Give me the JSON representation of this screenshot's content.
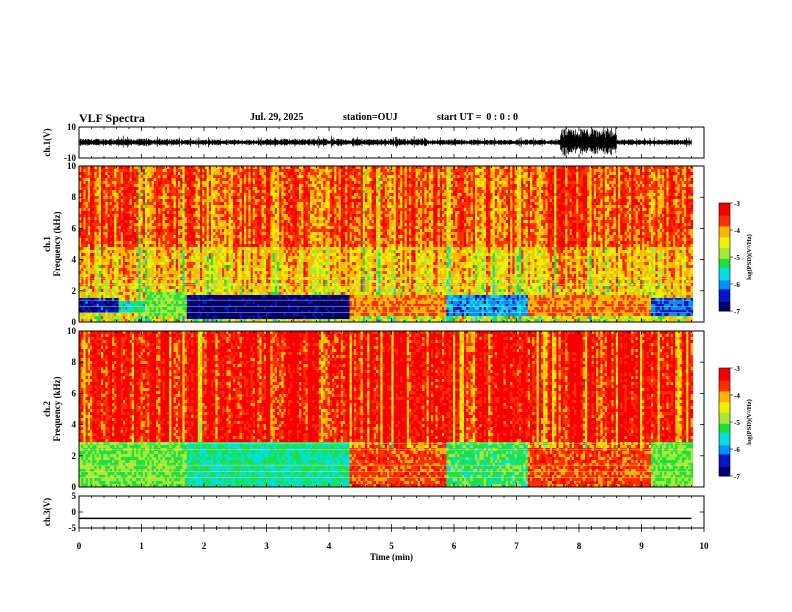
{
  "header": {
    "title": "VLF Spectra",
    "date": "Jul. 29, 2025",
    "station": "station=OUJ",
    "start": "start UT =  0 : 0 : 0"
  },
  "colors": {
    "colormap": [
      "#000070",
      "#0018c8",
      "#0090ff",
      "#00e0e0",
      "#20e040",
      "#a8e838",
      "#f0f000",
      "#ffb400",
      "#ff3000",
      "#f80000"
    ],
    "text": "#000000"
  },
  "colorbars": [
    {
      "ticks": [
        "-3",
        "-4",
        "-5",
        "-6",
        "-7"
      ],
      "label": "log(PSD)(V²/Hz)"
    },
    {
      "ticks": [
        "-3",
        "-4",
        "-5",
        "-6",
        "-7"
      ],
      "label": "log(PSD)(V²/Hz)"
    }
  ],
  "chart_data": [
    {
      "type": "line",
      "ylabel": "ch.1(V)",
      "yticks": [
        "10",
        "-10"
      ],
      "ylim": [
        -10,
        10
      ],
      "xlim": [
        0,
        10
      ],
      "xticks": [
        "0",
        "1",
        "2",
        "3",
        "4",
        "5",
        "6",
        "7",
        "8",
        "9",
        "10"
      ],
      "description_segments": [
        {
          "t": [
            0,
            1.6
          ],
          "amplitude_v": 2.5
        },
        {
          "t": [
            1.6,
            3.0
          ],
          "amplitude_v": 2.0
        },
        {
          "t": [
            3.0,
            5.5
          ],
          "amplitude_v": 2.5
        },
        {
          "t": [
            5.5,
            7.7
          ],
          "amplitude_v": 2.0
        },
        {
          "t": [
            7.7,
            8.6
          ],
          "amplitude_v": 9.0
        },
        {
          "t": [
            8.6,
            9.8
          ],
          "amplitude_v": 2.0
        }
      ]
    },
    {
      "type": "heatmap",
      "ylabel": "ch.1 Frequency (kHz)",
      "yticks": [
        "0",
        "2",
        "4",
        "6",
        "8",
        "10"
      ],
      "ylim": [
        0,
        10
      ],
      "xlim": [
        0,
        10
      ],
      "time_end_min": 9.8,
      "clim": [
        -7,
        -3
      ],
      "segments": [
        {
          "t": [
            0.0,
            0.6
          ],
          "low_band_khz": [
            0.6,
            1.6
          ],
          "low_level": -6.5
        },
        {
          "t": [
            0.6,
            1.05
          ],
          "low_band_khz": [
            0.6,
            1.4
          ],
          "low_level": -5.5
        },
        {
          "t": [
            1.05,
            1.7
          ],
          "low_band_khz": [
            0.5,
            2.0
          ],
          "low_level": -5.0
        },
        {
          "t": [
            1.7,
            4.3
          ],
          "low_band_khz": [
            0.3,
            1.8
          ],
          "low_level": -6.9
        },
        {
          "t": [
            4.3,
            5.85
          ],
          "low_band_khz": [
            0.5,
            1.8
          ],
          "low_level": -3.8
        },
        {
          "t": [
            5.85,
            7.15
          ],
          "low_band_khz": [
            0.5,
            1.8
          ],
          "low_level": -6.0
        },
        {
          "t": [
            7.15,
            9.15
          ],
          "low_band_khz": [
            0.5,
            1.8
          ],
          "low_level": -3.8
        },
        {
          "t": [
            9.15,
            9.8
          ],
          "low_band_khz": [
            0.5,
            1.6
          ],
          "low_level": -6.2
        }
      ]
    },
    {
      "type": "heatmap",
      "ylabel": "ch.2 Frequency (kHz)",
      "yticks": [
        "0",
        "2",
        "4",
        "6",
        "8",
        "10"
      ],
      "ylim": [
        0,
        10
      ],
      "xlim": [
        0,
        10
      ],
      "time_end_min": 9.8,
      "clim": [
        -7,
        -3
      ],
      "segments": [
        {
          "t": [
            0.0,
            1.7
          ],
          "low_band_khz": [
            0.0,
            3.0
          ],
          "low_level": -5.0
        },
        {
          "t": [
            1.7,
            4.3
          ],
          "low_band_khz": [
            0.0,
            3.0
          ],
          "low_level": -5.4
        },
        {
          "t": [
            4.3,
            5.85
          ],
          "low_band_khz": [
            0.0,
            2.5
          ],
          "low_level": -3.6
        },
        {
          "t": [
            5.85,
            7.15
          ],
          "low_band_khz": [
            0.0,
            3.0
          ],
          "low_level": -5.2
        },
        {
          "t": [
            7.15,
            9.15
          ],
          "low_band_khz": [
            0.0,
            2.5
          ],
          "low_level": -3.6
        },
        {
          "t": [
            9.15,
            9.8
          ],
          "low_band_khz": [
            0.0,
            3.0
          ],
          "low_level": -5.0
        }
      ]
    },
    {
      "type": "line",
      "ylabel": "ch.3(V)",
      "yticks": [
        "5",
        "0",
        "-5"
      ],
      "ylim": [
        -5,
        5
      ],
      "xlim": [
        0,
        10
      ],
      "xlabel": "Time (min)",
      "xticks": [
        "0",
        "1",
        "2",
        "3",
        "4",
        "5",
        "6",
        "7",
        "8",
        "9",
        "10"
      ],
      "x": [
        0,
        9.8
      ],
      "y": [
        -2,
        -2
      ]
    }
  ]
}
